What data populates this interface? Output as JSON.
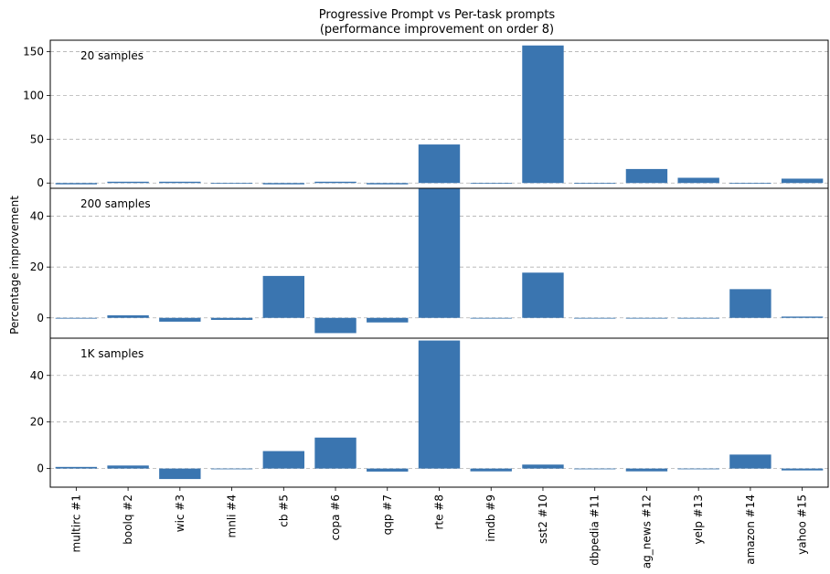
{
  "title_line1": "Progressive Prompt vs Per-task prompts",
  "title_line2": "(performance improvement on order 8)",
  "ylabel": "Percentage improvement",
  "bar_color": "#3a75b0",
  "chart_data": {
    "type": "bar",
    "categories": [
      "multirc #1",
      "boolq #2",
      "wic #3",
      "mnli #4",
      "cb #5",
      "copa #6",
      "qqp #7",
      "rte #8",
      "imdb #9",
      "sst2 #10",
      "dbpedia #11",
      "ag_news #12",
      "yelp #13",
      "amazon #14",
      "yahoo #15"
    ],
    "grid": "horizontal dashed",
    "panels": [
      {
        "label": "20 samples",
        "ylim": [
          -6,
          163
        ],
        "yticks": [
          0,
          50,
          100,
          150
        ],
        "values": [
          -1.5,
          1.5,
          1.5,
          -0.5,
          -1.5,
          1.5,
          -1.5,
          44,
          -0.5,
          157,
          -0.5,
          16,
          6,
          0,
          5
        ]
      },
      {
        "label": "200 samples",
        "ylim": [
          -8,
          51
        ],
        "yticks": [
          0,
          20,
          40
        ],
        "values": [
          -0.3,
          1,
          -1.5,
          -0.8,
          16.5,
          -6,
          -1.8,
          51,
          0,
          17.8,
          0,
          0,
          0,
          11.3,
          0.5
        ]
      },
      {
        "label": "1K samples",
        "ylim": [
          -8,
          56
        ],
        "yticks": [
          0,
          20,
          40
        ],
        "values": [
          0.7,
          1.3,
          -4.5,
          -0.3,
          7.5,
          13.3,
          -1.3,
          55,
          -1.2,
          1.7,
          -0.3,
          -1.2,
          -0.2,
          6,
          -0.8
        ]
      }
    ]
  }
}
